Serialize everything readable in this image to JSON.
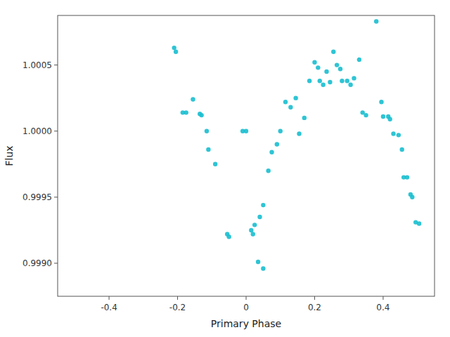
{
  "chart_data": {
    "type": "scatter",
    "xlabel": "Primary Phase",
    "ylabel": "Flux",
    "color": "#17becf",
    "grid": false,
    "x": [
      -0.21,
      -0.205,
      -0.185,
      -0.175,
      -0.155,
      -0.135,
      -0.13,
      -0.115,
      -0.11,
      -0.09,
      -0.055,
      -0.05,
      -0.01,
      0.0,
      0.015,
      0.02,
      0.025,
      0.04,
      0.05,
      0.035,
      0.05,
      0.065,
      0.075,
      0.09,
      0.1,
      0.115,
      0.13,
      0.145,
      0.155,
      0.17,
      0.185,
      0.2,
      0.21,
      0.215,
      0.225,
      0.235,
      0.245,
      0.255,
      0.265,
      0.275,
      0.28,
      0.295,
      0.305,
      0.315,
      0.33,
      0.34,
      0.35,
      0.38,
      0.395,
      0.4,
      0.415,
      0.42,
      0.43,
      0.445,
      0.455,
      0.46,
      0.47,
      0.48,
      0.485,
      0.495,
      0.505
    ],
    "values": [
      1.00063,
      1.0006,
      1.00014,
      1.00014,
      1.00024,
      1.00013,
      1.00012,
      1.0,
      0.99986,
      0.99975,
      0.99922,
      0.9992,
      1.0,
      1.0,
      0.99925,
      0.99922,
      0.99929,
      0.99935,
      0.99944,
      0.99901,
      0.99896,
      0.9997,
      0.99984,
      0.9999,
      1.0,
      1.00022,
      1.00018,
      1.00025,
      0.99998,
      1.0001,
      1.00038,
      1.00052,
      1.00048,
      1.00038,
      1.00035,
      1.00045,
      1.00037,
      1.0006,
      1.0005,
      1.00047,
      1.00038,
      1.00038,
      1.00035,
      1.0004,
      1.00054,
      1.00014,
      1.00012,
      1.00083,
      1.00022,
      1.00011,
      1.00011,
      1.00009,
      0.99998,
      0.99997,
      0.99986,
      0.99965,
      0.99965,
      0.99952,
      0.9995,
      0.99931,
      0.9993
    ],
    "xlim": [
      -0.55,
      0.55
    ],
    "xticks": [
      -0.4,
      -0.2,
      0,
      0.2,
      0.4
    ],
    "ylim": [
      0.99875,
      1.000875
    ],
    "yticks": [
      {
        "value": 0.999,
        "label": "0.9990"
      },
      {
        "value": 0.9995,
        "label": "0.9995"
      },
      {
        "value": 1,
        "label": "1.0000"
      },
      {
        "value": 1.0005,
        "label": "1.0005"
      }
    ]
  }
}
